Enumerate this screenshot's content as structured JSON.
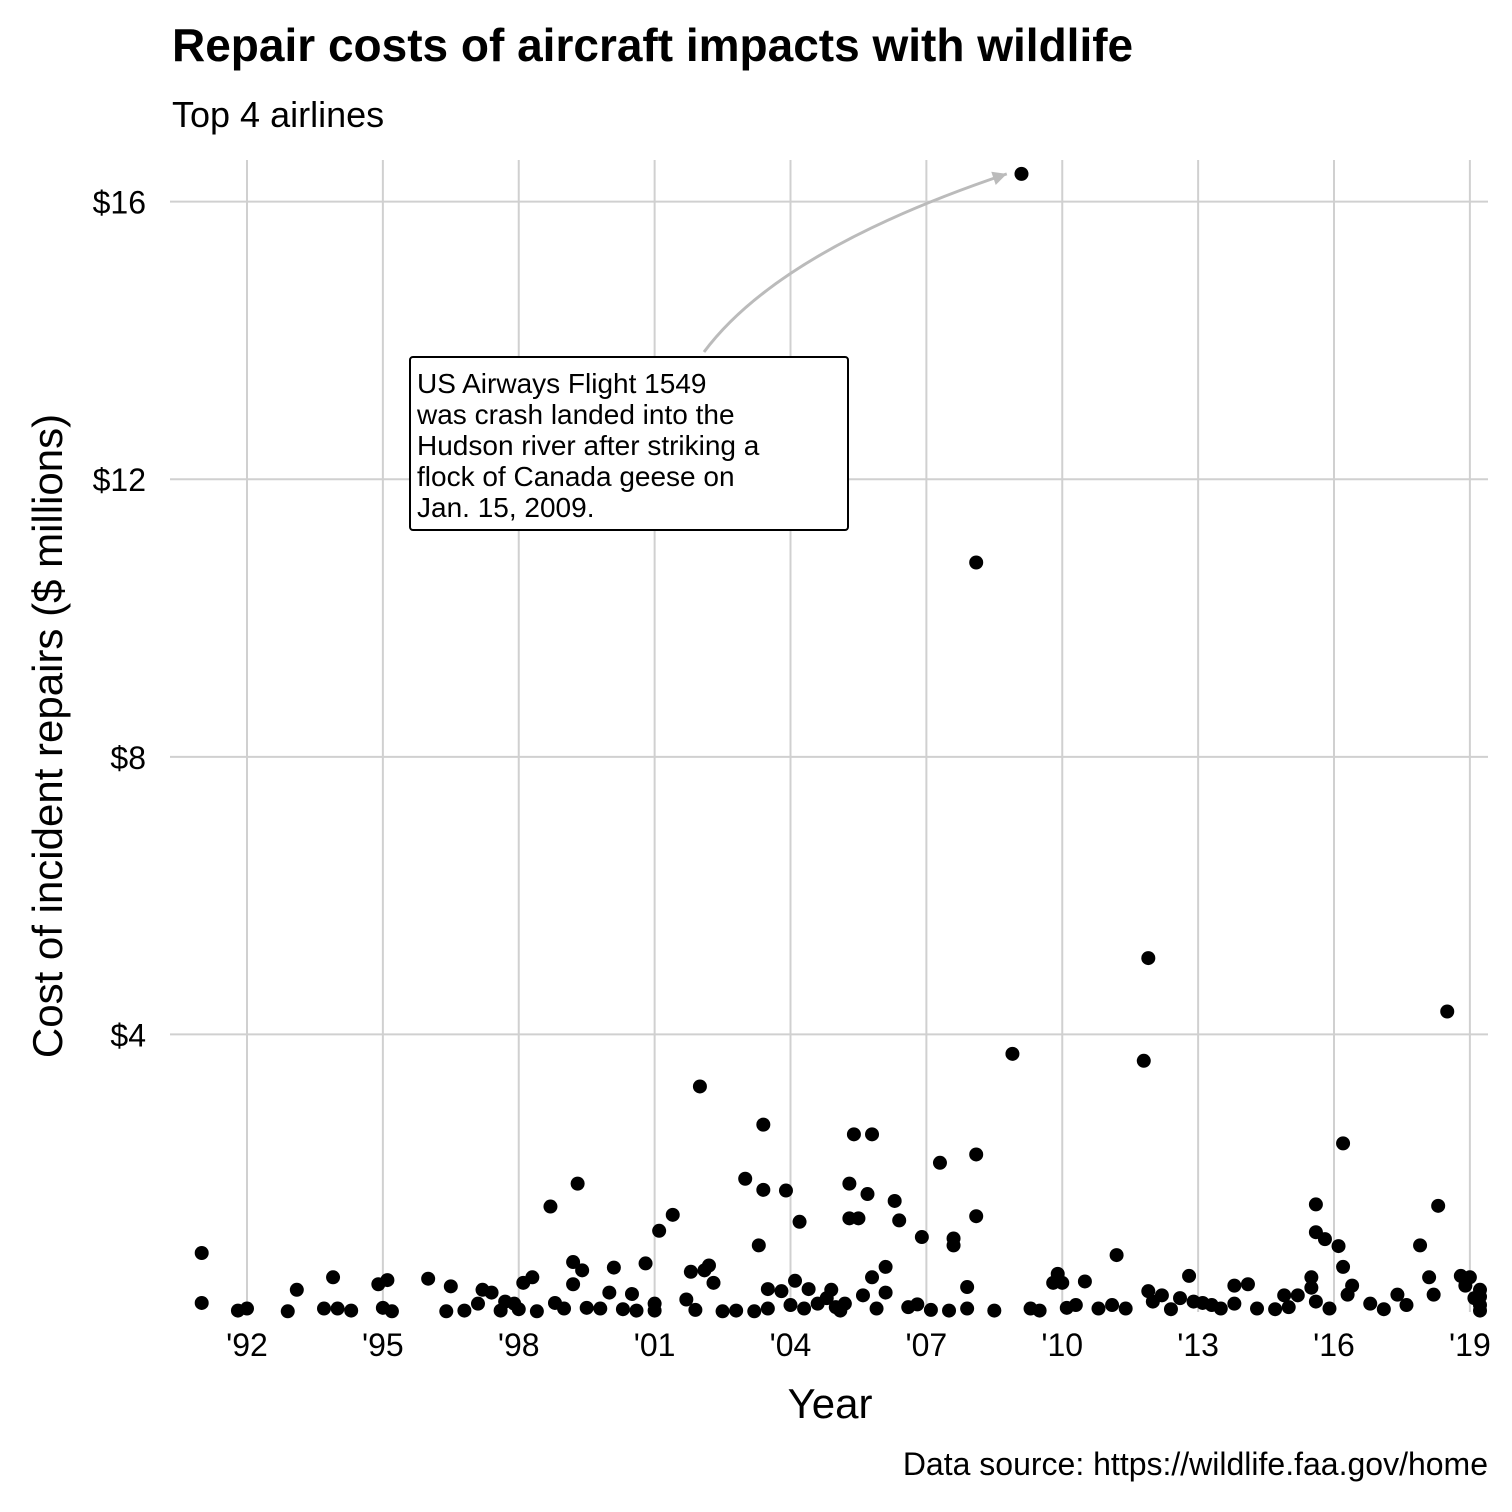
{
  "chart_data": {
    "type": "scatter",
    "title": "Repair costs of aircraft impacts with wildlife",
    "subtitle": "Top 4 airlines",
    "xlabel": "Year",
    "ylabel": "Cost of incident repairs ($ millions)",
    "caption": "Data source: https://wildlife.faa.gov/home",
    "xlim": [
      1990.3,
      2019.4
    ],
    "ylim": [
      0,
      16.6
    ],
    "x_ticks": [
      1992,
      1995,
      1998,
      2001,
      2004,
      2007,
      2010,
      2013,
      2016,
      2019
    ],
    "x_tick_labels": [
      "'92",
      "'95",
      "'98",
      "'01",
      "'04",
      "'07",
      "'10",
      "'13",
      "'16",
      "'19"
    ],
    "y_ticks": [
      4,
      8,
      12,
      16
    ],
    "y_tick_labels": [
      "$4",
      "$8",
      "$12",
      "$16"
    ],
    "grid": true,
    "point_color": "#000000",
    "annotation": {
      "text": "US Airways Flight 1549 was crash landed into the Hudson river after striking a flock of Canada geese on Jan. 15, 2009.",
      "lines": [
        "US Airways Flight 1549",
        "was crash landed into the",
        "Hudson river after striking a",
        "flock of Canada geese on",
        "Jan. 15, 2009."
      ],
      "target": [
        2009.04,
        16.4
      ],
      "arrow_color": "#bbbbbb"
    },
    "points": [
      [
        1991.0,
        0.85
      ],
      [
        1991.0,
        0.13
      ],
      [
        1991.8,
        0.02
      ],
      [
        1992.0,
        0.05
      ],
      [
        1992.9,
        0.01
      ],
      [
        1993.1,
        0.32
      ],
      [
        1993.7,
        0.05
      ],
      [
        1993.9,
        0.5
      ],
      [
        1994.0,
        0.05
      ],
      [
        1994.3,
        0.02
      ],
      [
        1994.9,
        0.4
      ],
      [
        1995.1,
        0.46
      ],
      [
        1995.0,
        0.06
      ],
      [
        1995.2,
        0.01
      ],
      [
        1996.0,
        0.48
      ],
      [
        1996.4,
        0.01
      ],
      [
        1996.5,
        0.37
      ],
      [
        1996.8,
        0.02
      ],
      [
        1997.1,
        0.12
      ],
      [
        1997.2,
        0.32
      ],
      [
        1997.4,
        0.28
      ],
      [
        1997.6,
        0.02
      ],
      [
        1997.7,
        0.15
      ],
      [
        1997.9,
        0.12
      ],
      [
        1998.0,
        0.04
      ],
      [
        1998.1,
        0.42
      ],
      [
        1998.3,
        0.5
      ],
      [
        1998.4,
        0.01
      ],
      [
        1998.7,
        1.52
      ],
      [
        1998.8,
        0.13
      ],
      [
        1999.0,
        0.05
      ],
      [
        1999.2,
        0.72
      ],
      [
        1999.2,
        0.4
      ],
      [
        1999.3,
        1.85
      ],
      [
        1999.4,
        0.6
      ],
      [
        1999.5,
        0.06
      ],
      [
        1999.8,
        0.05
      ],
      [
        2000.0,
        0.28
      ],
      [
        2000.1,
        0.64
      ],
      [
        2000.3,
        0.04
      ],
      [
        2000.5,
        0.26
      ],
      [
        2000.6,
        0.02
      ],
      [
        2000.8,
        0.7
      ],
      [
        2001.0,
        0.12
      ],
      [
        2001.0,
        0.02
      ],
      [
        2001.1,
        1.17
      ],
      [
        2001.4,
        1.4
      ],
      [
        2001.7,
        0.18
      ],
      [
        2001.8,
        0.58
      ],
      [
        2001.9,
        0.03
      ],
      [
        2002.0,
        3.25
      ],
      [
        2002.1,
        0.6
      ],
      [
        2002.2,
        0.67
      ],
      [
        2002.3,
        0.42
      ],
      [
        2002.5,
        0.01
      ],
      [
        2002.8,
        0.02
      ],
      [
        2003.0,
        1.92
      ],
      [
        2003.2,
        0.01
      ],
      [
        2003.3,
        0.96
      ],
      [
        2003.4,
        1.76
      ],
      [
        2003.4,
        2.7
      ],
      [
        2003.5,
        0.33
      ],
      [
        2003.5,
        0.05
      ],
      [
        2003.8,
        0.3
      ],
      [
        2003.9,
        1.75
      ],
      [
        2004.0,
        0.1
      ],
      [
        2004.1,
        0.45
      ],
      [
        2004.2,
        1.3
      ],
      [
        2004.3,
        0.05
      ],
      [
        2004.4,
        0.33
      ],
      [
        2004.6,
        0.12
      ],
      [
        2004.8,
        0.2
      ],
      [
        2004.9,
        0.32
      ],
      [
        2005.0,
        0.07
      ],
      [
        2005.1,
        0.02
      ],
      [
        2005.2,
        0.12
      ],
      [
        2005.3,
        1.85
      ],
      [
        2005.3,
        1.35
      ],
      [
        2005.4,
        2.56
      ],
      [
        2005.5,
        1.35
      ],
      [
        2005.6,
        0.24
      ],
      [
        2005.7,
        1.7
      ],
      [
        2005.8,
        0.5
      ],
      [
        2005.8,
        2.56
      ],
      [
        2005.9,
        0.05
      ],
      [
        2006.1,
        0.28
      ],
      [
        2006.1,
        0.65
      ],
      [
        2006.3,
        1.6
      ],
      [
        2006.4,
        1.32
      ],
      [
        2006.6,
        0.07
      ],
      [
        2006.8,
        0.11
      ],
      [
        2006.9,
        1.08
      ],
      [
        2007.1,
        0.03
      ],
      [
        2007.3,
        2.15
      ],
      [
        2007.5,
        0.02
      ],
      [
        2007.6,
        0.96
      ],
      [
        2007.6,
        1.06
      ],
      [
        2007.9,
        0.36
      ],
      [
        2007.9,
        0.05
      ],
      [
        2008.1,
        10.8
      ],
      [
        2008.1,
        2.27
      ],
      [
        2008.1,
        1.38
      ],
      [
        2008.5,
        0.02
      ],
      [
        2008.9,
        3.72
      ],
      [
        2009.1,
        16.4
      ],
      [
        2009.3,
        0.05
      ],
      [
        2009.5,
        0.02
      ],
      [
        2009.8,
        0.42
      ],
      [
        2009.9,
        0.55
      ],
      [
        2010.0,
        0.42
      ],
      [
        2010.1,
        0.06
      ],
      [
        2010.3,
        0.1
      ],
      [
        2010.5,
        0.44
      ],
      [
        2010.8,
        0.05
      ],
      [
        2011.1,
        0.1
      ],
      [
        2011.2,
        0.82
      ],
      [
        2011.4,
        0.05
      ],
      [
        2011.8,
        3.62
      ],
      [
        2011.9,
        0.3
      ],
      [
        2011.9,
        5.1
      ],
      [
        2012.0,
        0.15
      ],
      [
        2012.2,
        0.24
      ],
      [
        2012.4,
        0.04
      ],
      [
        2012.6,
        0.2
      ],
      [
        2012.8,
        0.52
      ],
      [
        2012.9,
        0.15
      ],
      [
        2013.1,
        0.13
      ],
      [
        2013.3,
        0.1
      ],
      [
        2013.5,
        0.05
      ],
      [
        2013.8,
        0.38
      ],
      [
        2013.8,
        0.12
      ],
      [
        2014.1,
        0.4
      ],
      [
        2014.3,
        0.05
      ],
      [
        2014.7,
        0.04
      ],
      [
        2014.9,
        0.24
      ],
      [
        2015.0,
        0.07
      ],
      [
        2015.2,
        0.24
      ],
      [
        2015.5,
        0.5
      ],
      [
        2015.5,
        0.35
      ],
      [
        2015.6,
        1.15
      ],
      [
        2015.6,
        1.55
      ],
      [
        2015.6,
        0.15
      ],
      [
        2015.8,
        1.05
      ],
      [
        2015.9,
        0.05
      ],
      [
        2016.1,
        0.95
      ],
      [
        2016.2,
        2.43
      ],
      [
        2016.2,
        0.65
      ],
      [
        2016.3,
        0.25
      ],
      [
        2016.4,
        0.38
      ],
      [
        2016.8,
        0.12
      ],
      [
        2017.1,
        0.04
      ],
      [
        2017.4,
        0.25
      ],
      [
        2017.6,
        0.1
      ],
      [
        2017.9,
        0.96
      ],
      [
        2018.1,
        0.5
      ],
      [
        2018.2,
        0.25
      ],
      [
        2018.3,
        1.53
      ],
      [
        2018.5,
        4.33
      ],
      [
        2018.8,
        0.52
      ],
      [
        2018.9,
        0.38
      ],
      [
        2019.0,
        0.5
      ],
      [
        2019.1,
        0.2
      ],
      [
        2019.3,
        0.1
      ],
      [
        2019.6,
        0.32
      ],
      [
        2019.9,
        0.22
      ],
      [
        2020.0,
        0.02
      ]
    ]
  }
}
